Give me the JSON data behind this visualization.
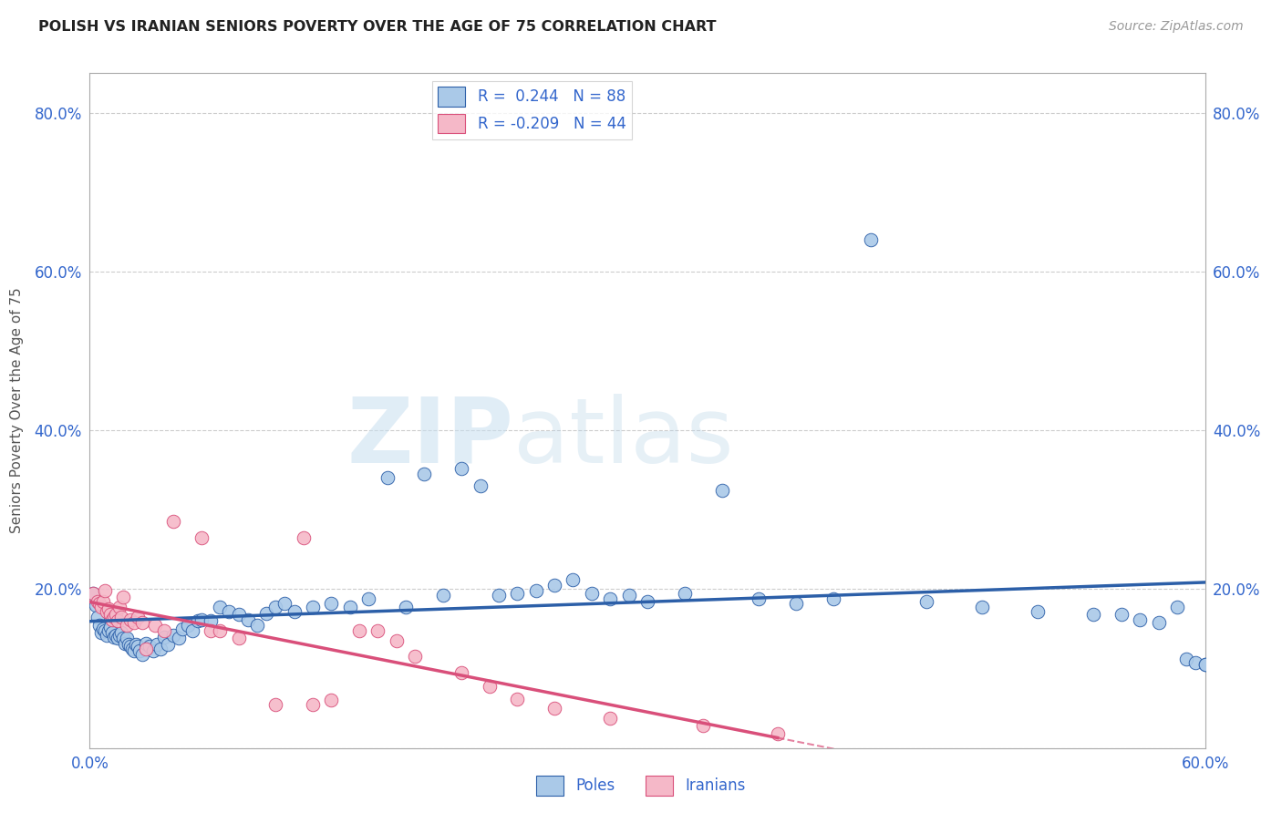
{
  "title": "POLISH VS IRANIAN SENIORS POVERTY OVER THE AGE OF 75 CORRELATION CHART",
  "source": "Source: ZipAtlas.com",
  "ylabel": "Seniors Poverty Over the Age of 75",
  "xlim": [
    0.0,
    0.6
  ],
  "ylim": [
    0.0,
    0.85
  ],
  "xticks": [
    0.0,
    0.1,
    0.2,
    0.3,
    0.4,
    0.5,
    0.6
  ],
  "xtick_labels": [
    "0.0%",
    "",
    "",
    "",
    "",
    "",
    "60.0%"
  ],
  "yticks": [
    0.0,
    0.2,
    0.4,
    0.6,
    0.8
  ],
  "ytick_labels": [
    "",
    "20.0%",
    "40.0%",
    "60.0%",
    "80.0%"
  ],
  "poles_color": "#aac9e8",
  "iranians_color": "#f5b8c8",
  "poles_line_color": "#2c5fa8",
  "iranians_line_color": "#d94f7a",
  "poles_R": 0.244,
  "poles_N": 88,
  "iranians_R": -0.209,
  "iranians_N": 44,
  "watermark_zip": "ZIP",
  "watermark_atlas": "atlas",
  "grid_color": "#cccccc",
  "background_color": "#ffffff",
  "poles_x": [
    0.002,
    0.003,
    0.004,
    0.005,
    0.006,
    0.007,
    0.008,
    0.009,
    0.01,
    0.011,
    0.012,
    0.013,
    0.014,
    0.015,
    0.016,
    0.017,
    0.018,
    0.019,
    0.02,
    0.021,
    0.022,
    0.023,
    0.024,
    0.025,
    0.026,
    0.027,
    0.028,
    0.03,
    0.032,
    0.034,
    0.036,
    0.038,
    0.04,
    0.042,
    0.045,
    0.048,
    0.05,
    0.053,
    0.055,
    0.058,
    0.06,
    0.065,
    0.07,
    0.075,
    0.08,
    0.085,
    0.09,
    0.095,
    0.1,
    0.105,
    0.11,
    0.12,
    0.13,
    0.14,
    0.15,
    0.16,
    0.17,
    0.18,
    0.19,
    0.2,
    0.21,
    0.22,
    0.23,
    0.24,
    0.25,
    0.26,
    0.27,
    0.28,
    0.29,
    0.3,
    0.32,
    0.34,
    0.36,
    0.38,
    0.4,
    0.42,
    0.45,
    0.48,
    0.51,
    0.54,
    0.555,
    0.565,
    0.575,
    0.585,
    0.59,
    0.595,
    0.6,
    0.6
  ],
  "poles_y": [
    0.195,
    0.18,
    0.165,
    0.155,
    0.145,
    0.15,
    0.148,
    0.142,
    0.148,
    0.152,
    0.145,
    0.14,
    0.142,
    0.138,
    0.142,
    0.145,
    0.138,
    0.132,
    0.138,
    0.13,
    0.128,
    0.125,
    0.122,
    0.13,
    0.128,
    0.122,
    0.118,
    0.132,
    0.128,
    0.122,
    0.13,
    0.125,
    0.14,
    0.13,
    0.142,
    0.138,
    0.15,
    0.155,
    0.148,
    0.16,
    0.162,
    0.16,
    0.178,
    0.172,
    0.168,
    0.162,
    0.155,
    0.17,
    0.178,
    0.182,
    0.172,
    0.178,
    0.182,
    0.178,
    0.188,
    0.34,
    0.178,
    0.345,
    0.192,
    0.352,
    0.33,
    0.192,
    0.195,
    0.198,
    0.205,
    0.212,
    0.195,
    0.188,
    0.192,
    0.185,
    0.195,
    0.325,
    0.188,
    0.182,
    0.188,
    0.64,
    0.185,
    0.178,
    0.172,
    0.168,
    0.168,
    0.162,
    0.158,
    0.178,
    0.112,
    0.108,
    0.105,
    0.105
  ],
  "iranians_x": [
    0.002,
    0.004,
    0.005,
    0.006,
    0.007,
    0.008,
    0.009,
    0.01,
    0.011,
    0.012,
    0.013,
    0.014,
    0.015,
    0.016,
    0.017,
    0.018,
    0.02,
    0.022,
    0.024,
    0.026,
    0.028,
    0.03,
    0.035,
    0.04,
    0.045,
    0.06,
    0.065,
    0.07,
    0.08,
    0.1,
    0.115,
    0.12,
    0.13,
    0.145,
    0.155,
    0.165,
    0.175,
    0.2,
    0.215,
    0.23,
    0.25,
    0.28,
    0.33,
    0.37
  ],
  "iranians_y": [
    0.195,
    0.185,
    0.182,
    0.178,
    0.185,
    0.198,
    0.172,
    0.175,
    0.168,
    0.162,
    0.165,
    0.168,
    0.16,
    0.178,
    0.165,
    0.19,
    0.155,
    0.162,
    0.158,
    0.165,
    0.158,
    0.125,
    0.155,
    0.148,
    0.285,
    0.265,
    0.148,
    0.148,
    0.138,
    0.055,
    0.265,
    0.055,
    0.06,
    0.148,
    0.148,
    0.135,
    0.115,
    0.095,
    0.078,
    0.062,
    0.05,
    0.038,
    0.028,
    0.018
  ]
}
